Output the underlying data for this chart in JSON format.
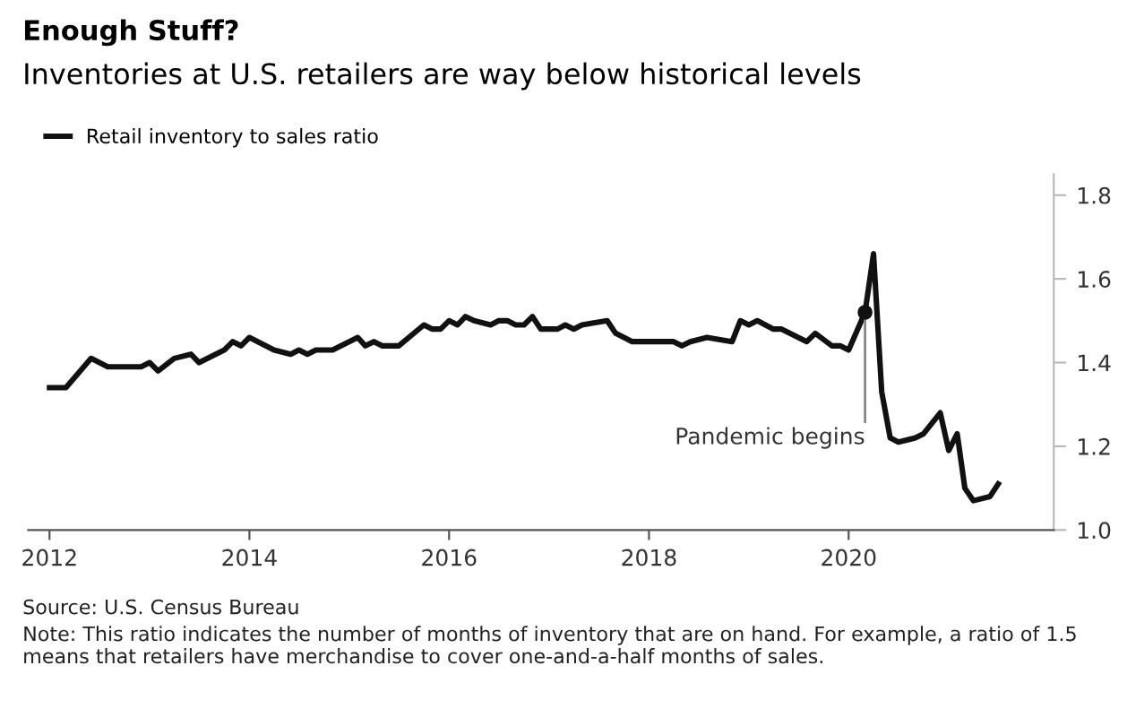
{
  "chart_data": {
    "type": "line",
    "title": "Enough Stuff?",
    "subtitle": "Inventories at U.S. retailers are way below historical levels",
    "series": [
      {
        "name": "Retail inventory to sales ratio",
        "color": "#111111",
        "x": [
          "2012-01",
          "2012-03",
          "2012-06",
          "2012-08",
          "2012-12",
          "2013-01",
          "2013-02",
          "2013-04",
          "2013-06",
          "2013-07",
          "2013-10",
          "2013-11",
          "2013-12",
          "2014-01",
          "2014-04",
          "2014-06",
          "2014-07",
          "2014-08",
          "2014-09",
          "2014-11",
          "2015-02",
          "2015-03",
          "2015-04",
          "2015-05",
          "2015-07",
          "2015-10",
          "2015-11",
          "2015-12",
          "2016-01",
          "2016-02",
          "2016-03",
          "2016-04",
          "2016-06",
          "2016-07",
          "2016-08",
          "2016-09",
          "2016-10",
          "2016-11",
          "2016-12",
          "2017-02",
          "2017-03",
          "2017-04",
          "2017-05",
          "2017-08",
          "2017-09",
          "2017-11",
          "2018-04",
          "2018-05",
          "2018-06",
          "2018-08",
          "2018-11",
          "2018-12",
          "2019-01",
          "2019-02",
          "2019-04",
          "2019-05",
          "2019-08",
          "2019-09",
          "2019-11",
          "2019-12",
          "2020-01",
          "2020-03",
          "2020-04",
          "2020-05",
          "2020-06",
          "2020-07",
          "2020-09",
          "2020-10",
          "2020-12",
          "2021-01",
          "2021-02",
          "2021-03",
          "2021-04",
          "2021-06",
          "2021-07"
        ],
        "values": [
          1.34,
          1.34,
          1.41,
          1.39,
          1.39,
          1.4,
          1.38,
          1.41,
          1.42,
          1.4,
          1.43,
          1.45,
          1.44,
          1.46,
          1.43,
          1.42,
          1.43,
          1.42,
          1.43,
          1.43,
          1.46,
          1.44,
          1.45,
          1.44,
          1.44,
          1.49,
          1.48,
          1.48,
          1.5,
          1.49,
          1.51,
          1.5,
          1.49,
          1.5,
          1.5,
          1.49,
          1.49,
          1.51,
          1.48,
          1.48,
          1.49,
          1.48,
          1.49,
          1.5,
          1.47,
          1.45,
          1.45,
          1.44,
          1.45,
          1.46,
          1.45,
          1.5,
          1.49,
          1.5,
          1.48,
          1.48,
          1.45,
          1.47,
          1.44,
          1.44,
          1.43,
          1.52,
          1.66,
          1.33,
          1.22,
          1.21,
          1.22,
          1.23,
          1.28,
          1.19,
          1.23,
          1.1,
          1.07,
          1.08,
          1.11
        ]
      }
    ],
    "xlim": [
      "2011-10-15",
      "2022-01-20"
    ],
    "xticks": [
      "2012",
      "2014",
      "2016",
      "2018",
      "2020"
    ],
    "ylim": [
      1.0,
      1.85
    ],
    "yticks": [
      {
        "value": 1.0,
        "label": "1.0"
      },
      1.2,
      1.4,
      1.6,
      1.8
    ],
    "legend": "top left",
    "grid": false,
    "line_style": "solid",
    "marker": "none",
    "annotations": [
      {
        "text": "Pandemic begins",
        "x": "2020-03",
        "y": 1.52
      },
      "Source: U.S. Census Bureau",
      "Note: This ratio indicates the number of months of inventory that are on hand. For example, a ratio of 1.5 means that retailers have merchandise to cover one-and-a-half months of sales."
    ]
  }
}
